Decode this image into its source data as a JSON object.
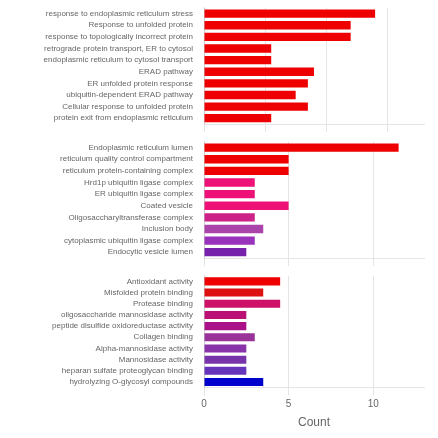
{
  "chart_data": [
    {
      "type": "bar",
      "orientation": "horizontal",
      "grid": true,
      "tick_labels": "y",
      "categories": [
        "response to endoplasmic reticulum stress",
        "Response to unfolded protein",
        "response to topologically incorrect protein",
        "retrograde protein transport, ER to cytosol",
        "endoplasmic reticulum to cytosol transport",
        "ERAD pathway",
        "ER unfolded protein response",
        "ubiquitin-dependent ERAD pathway",
        "Cellular response to unfolded protein",
        "protein exit from endoplasmic reticulum"
      ],
      "values": [
        14.0,
        12.0,
        12.0,
        5.5,
        5.5,
        9.0,
        8.5,
        7.5,
        8.5,
        5.5
      ],
      "colors": [
        "#EE0000",
        "#EE0000",
        "#EE0000",
        "#EE0000",
        "#EE0000",
        "#EE0000",
        "#EE0000",
        "#EE0000",
        "#EE0000",
        "#EE0000"
      ],
      "xlim": [
        0,
        18
      ],
      "xticks": [
        0,
        5,
        10,
        15
      ]
    },
    {
      "type": "bar",
      "orientation": "horizontal",
      "grid": true,
      "tick_labels": "y",
      "categories": [
        "Endoplasmic reticulum lumen",
        "reticulum quality control compartment",
        "reticulum protein-containing complex",
        "Hrd1p ubiquitin ligase complex",
        "ER ubiquitin ligase complex",
        "Coated vesicle",
        "Oligosaccharyltransferase complex",
        "Inclusion body",
        "cytoplasmic ubiquitin ligase complex",
        "Endocytic vesicle lumen"
      ],
      "values": [
        11.5,
        5.0,
        5.0,
        3.0,
        3.0,
        5.0,
        3.0,
        3.5,
        3.0,
        2.5
      ],
      "colors": [
        "#EE0000",
        "#EE0000",
        "#EE0000",
        "#EE1177",
        "#EE1177",
        "#EE1177",
        "#CC2288",
        "#AA44AA",
        "#9933BB",
        "#7722AA"
      ],
      "xlim": [
        0,
        13
      ],
      "xticks": [
        0,
        5,
        10
      ]
    },
    {
      "type": "bar",
      "orientation": "horizontal",
      "grid": true,
      "xlabel": "Count",
      "categories": [
        "Antioxidant activity",
        "Misfolded protein binding",
        "Protease binding",
        "oligosaccharide mannosidase activity",
        "peptide disulfide oxidoreductase activity",
        "Collagen binding",
        "Alpha-mannosidase activity",
        "Mannosidase activity",
        "heparan sulfate proteoglycan binding",
        "hydrolyzing O-glycosyl compounds"
      ],
      "values": [
        4.5,
        3.5,
        4.5,
        2.5,
        2.5,
        3.0,
        2.5,
        2.5,
        2.5,
        3.5
      ],
      "colors": [
        "#EE0000",
        "#DD1111",
        "#CC1166",
        "#BB1177",
        "#AA1188",
        "#993399",
        "#8833AA",
        "#7733AA",
        "#6633BB",
        "#0000CC"
      ],
      "xlim": [
        0,
        13
      ],
      "xticks": [
        0,
        5,
        10
      ]
    }
  ]
}
